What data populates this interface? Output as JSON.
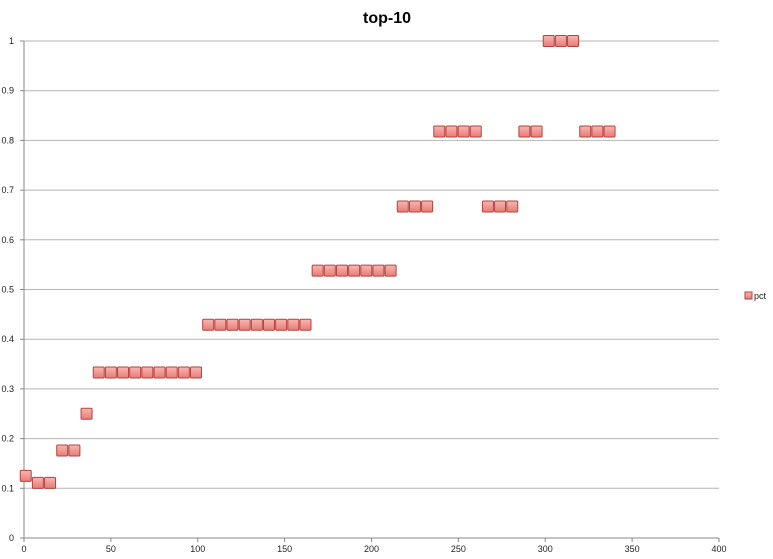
{
  "chart_data": {
    "type": "scatter",
    "title": "top-10",
    "xlabel": "",
    "ylabel": "",
    "xlim": [
      0,
      400
    ],
    "ylim": [
      0,
      1
    ],
    "x_ticks": [
      "0",
      "50",
      "100",
      "150",
      "200",
      "250",
      "300",
      "350",
      "400"
    ],
    "y_ticks": [
      "0",
      "0.1",
      "0.2",
      "0.3",
      "0.4",
      "0.5",
      "0.6",
      "0.7",
      "0.8",
      "0.9",
      "1"
    ],
    "grid": "horizontal",
    "legend_position": "right",
    "marker": "square",
    "series": [
      {
        "name": "pct",
        "color": "#e87b76",
        "points": [
          [
            1,
            0.125
          ],
          [
            8,
            0.111
          ],
          [
            15,
            0.111
          ],
          [
            22,
            0.176
          ],
          [
            29,
            0.176
          ],
          [
            36,
            0.25
          ],
          [
            43,
            0.333
          ],
          [
            50,
            0.333
          ],
          [
            57,
            0.333
          ],
          [
            64,
            0.333
          ],
          [
            71,
            0.333
          ],
          [
            78,
            0.333
          ],
          [
            85,
            0.333
          ],
          [
            92,
            0.333
          ],
          [
            99,
            0.333
          ],
          [
            106,
            0.429
          ],
          [
            113,
            0.429
          ],
          [
            120,
            0.429
          ],
          [
            127,
            0.429
          ],
          [
            134,
            0.429
          ],
          [
            141,
            0.429
          ],
          [
            148,
            0.429
          ],
          [
            155,
            0.429
          ],
          [
            162,
            0.429
          ],
          [
            169,
            0.538
          ],
          [
            176,
            0.538
          ],
          [
            183,
            0.538
          ],
          [
            190,
            0.538
          ],
          [
            197,
            0.538
          ],
          [
            204,
            0.538
          ],
          [
            211,
            0.538
          ],
          [
            218,
            0.667
          ],
          [
            225,
            0.667
          ],
          [
            232,
            0.667
          ],
          [
            239,
            0.818
          ],
          [
            246,
            0.818
          ],
          [
            253,
            0.818
          ],
          [
            260,
            0.818
          ],
          [
            267,
            0.667
          ],
          [
            274,
            0.667
          ],
          [
            281,
            0.667
          ],
          [
            288,
            0.818
          ],
          [
            295,
            0.818
          ],
          [
            302,
            1.0
          ],
          [
            309,
            1.0
          ],
          [
            316,
            1.0
          ],
          [
            323,
            0.818
          ],
          [
            330,
            0.818
          ],
          [
            337,
            0.818
          ]
        ]
      }
    ]
  }
}
